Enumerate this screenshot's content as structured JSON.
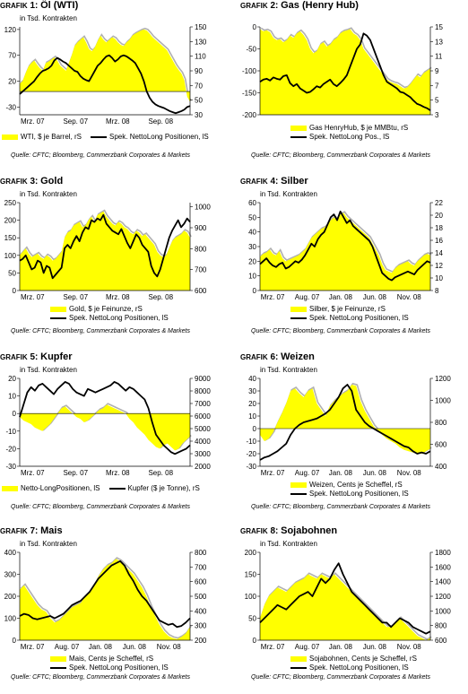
{
  "colors": {
    "area": "#ffff00",
    "shadow": "#b0b0b0",
    "line": "#000000"
  },
  "charts": [
    {
      "type": "area+line",
      "grafik_label": "GRAFIK",
      "num": "1",
      "head": "Öl (WTI)",
      "unit": "in Tsd. Kontrakten",
      "x_ticks": [
        "Mrz. 07",
        "Sep. 07",
        "Mrz. 08",
        "Sep. 08"
      ],
      "left_axis": {
        "ticks": [
          "-30",
          "20",
          "70",
          "120"
        ],
        "min": -45,
        "max": 125
      },
      "right_axis": {
        "ticks": [
          "30",
          "50",
          "70",
          "90",
          "110",
          "130",
          "150"
        ],
        "min": 30,
        "max": 150
      },
      "legend": [
        "WTI, $ je Barrel, rS",
        "Spek. NettoLong Positionen, lS"
      ],
      "legend_layout": "row",
      "source": "Quelle: CFTC; Bloomberg, Commerzbank Corporates & Markets",
      "area": [
        15,
        20,
        35,
        48,
        55,
        60,
        52,
        45,
        40,
        55,
        58,
        62,
        66,
        60,
        50,
        45,
        40,
        55,
        70,
        88,
        95,
        100,
        105,
        95,
        82,
        78,
        85,
        98,
        108,
        100,
        95,
        100,
        105,
        102,
        95,
        90,
        88,
        95,
        100,
        108,
        112,
        115,
        118,
        120,
        118,
        112,
        105,
        100,
        95,
        90,
        85,
        80,
        70,
        60,
        50,
        42,
        35,
        22,
        -10,
        -20
      ],
      "line": [
        -5,
        0,
        5,
        10,
        15,
        20,
        28,
        35,
        40,
        42,
        45,
        50,
        60,
        65,
        62,
        58,
        55,
        50,
        45,
        40,
        38,
        30,
        25,
        22,
        20,
        30,
        40,
        50,
        55,
        62,
        68,
        70,
        65,
        58,
        62,
        68,
        70,
        68,
        64,
        60,
        55,
        45,
        35,
        20,
        0,
        -12,
        -20,
        -25,
        -28,
        -30,
        -32,
        -35,
        -38,
        -40,
        -42,
        -40,
        -38,
        -35,
        -30,
        -28
      ]
    },
    {
      "type": "area+line",
      "grafik_label": "GRAFIK",
      "num": "2",
      "head": "Gas (Henry Hub)",
      "unit": "",
      "x_ticks": [],
      "left_axis": {
        "ticks": [
          "-200",
          "-150",
          "-100",
          "-50",
          "0"
        ],
        "min": -200,
        "max": 0
      },
      "right_axis": {
        "ticks": [
          "3",
          "5",
          "7",
          "9",
          "11",
          "13",
          "15"
        ],
        "min": 3,
        "max": 15
      },
      "legend": [
        "Gas HenryHub, $ je MMBtu, rS",
        "Spek. NettoLong Pos., lS"
      ],
      "legend_layout": "col",
      "source": "Quelle: CFTC; Bloomberg, Commerzbank Corporates & Markets",
      "area": [
        -5,
        -10,
        -8,
        -12,
        -25,
        -30,
        -28,
        -35,
        -30,
        -20,
        -25,
        -15,
        -10,
        -18,
        -30,
        -50,
        -60,
        -55,
        -40,
        -35,
        -45,
        -40,
        -30,
        -25,
        -15,
        -10,
        -8,
        -5,
        -15,
        -20,
        -30,
        -50,
        -60,
        -70,
        -80,
        -90,
        -100,
        -110,
        -120,
        -125,
        -128,
        -130,
        -135,
        -140,
        -138,
        -130,
        -120,
        -110,
        -115,
        -105,
        -100,
        -95
      ],
      "line": [
        -125,
        -120,
        -118,
        -122,
        -115,
        -118,
        -120,
        -112,
        -110,
        -128,
        -135,
        -130,
        -140,
        -145,
        -150,
        -148,
        -142,
        -135,
        -138,
        -130,
        -125,
        -120,
        -130,
        -135,
        -128,
        -120,
        -110,
        -90,
        -70,
        -50,
        -40,
        -15,
        -20,
        -30,
        -50,
        -70,
        -90,
        -110,
        -125,
        -130,
        -135,
        -140,
        -148,
        -150,
        -155,
        -160,
        -168,
        -175,
        -178,
        -182,
        -185,
        -190
      ]
    },
    {
      "type": "area+line",
      "grafik_label": "GRAFIK",
      "num": "3",
      "head": "Gold",
      "unit": "in Tsd. Kontrakten",
      "x_ticks": [
        "Mrz. 07",
        "Sep. 07",
        "Mrz. 08",
        "Sep. 08"
      ],
      "left_axis": {
        "ticks": [
          "0",
          "50",
          "100",
          "150",
          "200",
          "250"
        ],
        "min": 0,
        "max": 250
      },
      "right_axis": {
        "ticks": [
          "600",
          "700",
          "800",
          "900",
          "1000"
        ],
        "min": 600,
        "max": 1020
      },
      "legend": [
        "Gold, $ je Feinunze, rS",
        "Spek. NettoLong Positionen, lS"
      ],
      "legend_layout": "col",
      "source": "Quelle: CFTC; Bloomberg, Commerzbank Corporates & Markets",
      "area": [
        100,
        110,
        120,
        105,
        95,
        100,
        105,
        95,
        90,
        100,
        95,
        85,
        90,
        100,
        110,
        150,
        165,
        170,
        185,
        190,
        195,
        180,
        185,
        200,
        210,
        195,
        215,
        220,
        225,
        210,
        200,
        190,
        185,
        195,
        190,
        180,
        175,
        165,
        160,
        170,
        165,
        155,
        160,
        150,
        140,
        130,
        110,
        100,
        95,
        100,
        120,
        140,
        150,
        155,
        160,
        170,
        165,
        150
      ],
      "line": [
        85,
        90,
        100,
        80,
        60,
        65,
        85,
        80,
        50,
        70,
        65,
        35,
        45,
        55,
        65,
        120,
        130,
        120,
        140,
        155,
        140,
        165,
        180,
        175,
        200,
        195,
        205,
        200,
        215,
        190,
        180,
        170,
        165,
        160,
        175,
        155,
        135,
        120,
        140,
        160,
        150,
        130,
        120,
        110,
        70,
        50,
        40,
        60,
        90,
        120,
        150,
        170,
        185,
        200,
        180,
        190,
        205,
        195
      ]
    },
    {
      "type": "area+line",
      "grafik_label": "GRAFIK",
      "num": "4",
      "head": "Silber",
      "unit": "in Tsd. Kontrakten",
      "x_ticks": [
        "Mrz. 07",
        "Aug. 07",
        "Jan. 08",
        "Jun. 08",
        "Nov. 08"
      ],
      "left_axis": {
        "ticks": [
          "0",
          "10",
          "20",
          "30",
          "40",
          "50",
          "60"
        ],
        "min": 0,
        "max": 60
      },
      "right_axis": {
        "ticks": [
          "8",
          "10",
          "12",
          "14",
          "16",
          "18",
          "20",
          "22"
        ],
        "min": 8,
        "max": 22
      },
      "legend": [
        "Silber, $ je Feinunze, rS",
        "Spek. NettoLong Positionen, lS"
      ],
      "legend_layout": "col",
      "source": "Quelle: CFTC; Bloomberg, Commerzbank Corporates & Markets",
      "area": [
        23,
        25,
        26,
        28,
        25,
        24,
        27,
        22,
        20,
        21,
        22,
        23,
        24,
        26,
        28,
        32,
        36,
        38,
        40,
        42,
        43,
        45,
        48,
        50,
        48,
        52,
        53,
        50,
        48,
        46,
        44,
        42,
        40,
        38,
        36,
        32,
        28,
        24,
        18,
        14,
        13,
        12,
        15,
        17,
        18,
        19,
        20,
        18,
        17,
        20,
        22,
        24,
        25,
        24
      ],
      "line": [
        18,
        20,
        22,
        19,
        17,
        16,
        18,
        19,
        15,
        16,
        18,
        20,
        19,
        21,
        24,
        28,
        32,
        30,
        35,
        38,
        40,
        45,
        50,
        52,
        48,
        54,
        50,
        46,
        48,
        44,
        42,
        40,
        38,
        36,
        34,
        30,
        24,
        18,
        12,
        10,
        8,
        7,
        9,
        10,
        11,
        12,
        13,
        12,
        11,
        14,
        16,
        18,
        20,
        19
      ]
    },
    {
      "type": "area+line",
      "grafik_label": "GRAFIK",
      "num": "5",
      "head": "Kupfer",
      "unit": "in Tsd. Kontrakten",
      "x_ticks": [
        "Mrz. 07",
        "Sep. 07",
        "Mrz. 08",
        "Sep. 08"
      ],
      "left_axis": {
        "ticks": [
          "-30",
          "-20",
          "-10",
          "0",
          "10",
          "20"
        ],
        "min": -30,
        "max": 20
      },
      "right_axis": {
        "ticks": [
          "2000",
          "3000",
          "4000",
          "5000",
          "6000",
          "7000",
          "8000",
          "9000"
        ],
        "min": 2000,
        "max": 9000
      },
      "legend": [
        "Netto-LongPositionen, lS",
        "Kupfer ($ je Tonne), rS"
      ],
      "legend_layout": "row",
      "source": "Quelle: CFTC; Bloomberg, Commerzbank Corporates & Markets",
      "area": [
        -2,
        -4,
        -5,
        -6,
        -8,
        -9,
        -10,
        -8,
        -6,
        -3,
        0,
        3,
        4,
        2,
        0,
        -2,
        -3,
        -5,
        -4,
        -2,
        0,
        2,
        3,
        5,
        4,
        3,
        2,
        1,
        0,
        -3,
        -5,
        -8,
        -10,
        -12,
        -15,
        -17,
        -19,
        -20,
        -18,
        -17,
        -19,
        -21,
        -20,
        -17,
        -15,
        -13
      ],
      "line": [
        -2,
        5,
        12,
        15,
        13,
        16,
        17,
        15,
        13,
        11,
        14,
        16,
        18,
        17,
        14,
        12,
        11,
        10,
        14,
        13,
        12,
        13,
        14,
        15,
        16,
        18,
        17,
        15,
        13,
        15,
        14,
        12,
        10,
        8,
        3,
        -5,
        -12,
        -15,
        -18,
        -20,
        -22,
        -23,
        -22,
        -21,
        -20,
        -18
      ]
    },
    {
      "type": "area+line",
      "grafik_label": "GRAFIK",
      "num": "6",
      "head": "Weizen",
      "unit": "in Tsd. Kontrakten",
      "x_ticks": [
        "Mrz. 07",
        "Aug. 07",
        "Jan. 08",
        "Jun. 08",
        "Nov. 08"
      ],
      "left_axis": {
        "ticks": [
          "-30",
          "-20",
          "-10",
          "0",
          "10",
          "20",
          "30",
          "40"
        ],
        "min": -30,
        "max": 40
      },
      "right_axis": {
        "ticks": [
          "400",
          "600",
          "800",
          "1000",
          "1200"
        ],
        "min": 400,
        "max": 1200
      },
      "legend": [
        "Weizen, Cents  je Scheffel, rS",
        "Spek. NettoLong Positionen, lS"
      ],
      "legend_layout": "col",
      "source": "Quelle: CFTC; Bloomberg, Commerzbank Corporates & Markets",
      "area": [
        -5,
        -10,
        -8,
        -3,
        5,
        12,
        20,
        30,
        32,
        28,
        25,
        30,
        32,
        20,
        15,
        10,
        18,
        22,
        25,
        28,
        30,
        35,
        34,
        22,
        14,
        8,
        2,
        -2,
        -5,
        -8,
        -10,
        -12,
        -15,
        -17,
        -18,
        -19,
        -20,
        -20,
        -18,
        -16
      ],
      "line": [
        -25,
        -23,
        -22,
        -20,
        -18,
        -15,
        -12,
        -5,
        0,
        3,
        5,
        6,
        7,
        8,
        10,
        12,
        15,
        20,
        25,
        32,
        35,
        30,
        15,
        10,
        5,
        2,
        0,
        -2,
        -4,
        -6,
        -8,
        -10,
        -12,
        -14,
        -15,
        -18,
        -20,
        -19,
        -20,
        -18
      ]
    },
    {
      "type": "area+line",
      "grafik_label": "GRAFIK",
      "num": "7",
      "head": "Mais",
      "unit": "in Tsd. Kontrakten",
      "x_ticks": [
        "Mrz. 07",
        "Aug. 07",
        "Jan. 08",
        "Jun. 08",
        "Nov. 08"
      ],
      "left_axis": {
        "ticks": [
          "0",
          "100",
          "200",
          "300",
          "400"
        ],
        "min": 0,
        "max": 400
      },
      "right_axis": {
        "ticks": [
          "200",
          "300",
          "400",
          "500",
          "600",
          "700",
          "800"
        ],
        "min": 200,
        "max": 800
      },
      "legend": [
        "Mais, Cents  je Scheffel, rS",
        "Spek. NettoLong Positionen, lS"
      ],
      "legend_layout": "col",
      "source": "Quelle: CFTC; Bloomberg, Commerzbank Corporates & Markets",
      "area": [
        230,
        250,
        220,
        190,
        160,
        140,
        130,
        100,
        80,
        90,
        110,
        130,
        150,
        160,
        170,
        200,
        220,
        250,
        290,
        320,
        340,
        350,
        370,
        360,
        340,
        320,
        300,
        270,
        240,
        200,
        150,
        110,
        70,
        40,
        20,
        10,
        5,
        15,
        30,
        60
      ],
      "line": [
        110,
        120,
        115,
        100,
        95,
        100,
        105,
        110,
        100,
        110,
        120,
        140,
        160,
        170,
        180,
        200,
        220,
        250,
        280,
        300,
        320,
        340,
        350,
        360,
        340,
        300,
        270,
        230,
        200,
        180,
        150,
        120,
        90,
        80,
        70,
        75,
        60,
        65,
        80,
        100
      ]
    },
    {
      "type": "area+line",
      "grafik_label": "GRAFIK",
      "num": "8",
      "head": "Sojabohnen",
      "unit": "in Tsd. Kontrakten",
      "x_ticks": [
        "Mrz. 07",
        "Aug. 07",
        "Jan. 08",
        "Jun. 08",
        "Nov. 08"
      ],
      "left_axis": {
        "ticks": [
          "0",
          "50",
          "100",
          "150",
          "200"
        ],
        "min": 0,
        "max": 200
      },
      "right_axis": {
        "ticks": [
          "600",
          "800",
          "1000",
          "1200",
          "1400",
          "1600",
          "1800"
        ],
        "min": 600,
        "max": 1800
      },
      "legend": [
        "Sojabohnen, Cents je Scheffel, rS",
        "Spek. NettoLong Positionen, lS"
      ],
      "legend_layout": "col",
      "source": "Quelle: CFTC; Bloomberg, Commerzbank Corporates & Markets",
      "area": [
        50,
        80,
        100,
        110,
        120,
        115,
        110,
        120,
        130,
        135,
        140,
        150,
        145,
        140,
        150,
        145,
        140,
        150,
        140,
        130,
        120,
        110,
        100,
        90,
        80,
        70,
        60,
        50,
        40,
        30,
        30,
        40,
        50,
        40,
        30,
        20,
        10,
        5,
        0,
        5
      ],
      "line": [
        40,
        50,
        60,
        70,
        80,
        75,
        70,
        80,
        90,
        100,
        105,
        110,
        100,
        120,
        140,
        130,
        140,
        160,
        175,
        150,
        130,
        110,
        100,
        90,
        80,
        70,
        60,
        50,
        40,
        40,
        30,
        40,
        50,
        45,
        40,
        30,
        25,
        20,
        15,
        20
      ]
    }
  ]
}
